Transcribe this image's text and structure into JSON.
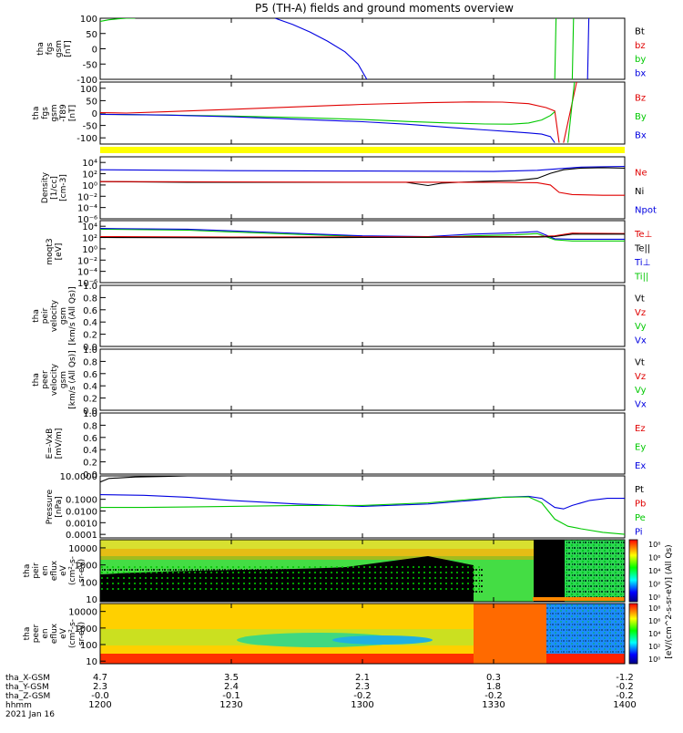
{
  "title": "P5 (TH-A) fields and ground moments overview",
  "colors": {
    "black": "#000000",
    "red": "#e00000",
    "green": "#00c800",
    "blue": "#0000e0",
    "yellow": "#ffff00"
  },
  "time_axis": {
    "tick_labels": [
      "1200",
      "1230",
      "1300",
      "1330",
      "1400"
    ],
    "tick_minutes": [
      0,
      30,
      60,
      90,
      120
    ],
    "range_minutes": [
      0,
      120
    ],
    "ephemeris": [
      {
        "name": "tha_X-GSM",
        "values": [
          "4.7",
          "3.5",
          "2.1",
          "0.3",
          "-1.2"
        ]
      },
      {
        "name": "tha_Y-GSM",
        "values": [
          "2.3",
          "2.4",
          "2.3",
          "1.8",
          "-0.2"
        ]
      },
      {
        "name": "tha_Z-GSM",
        "values": [
          "-0.0",
          "-0.1",
          "-0.2",
          "-0.2",
          "-0.2"
        ]
      },
      {
        "name": "hhmm",
        "values": [
          "1200",
          "1230",
          "1300",
          "1330",
          "1400"
        ]
      }
    ],
    "date": "2021 Jan 16"
  },
  "chart_data": [
    {
      "type": "line",
      "id": "fgs",
      "ylabel_lines": [
        "tha",
        "fgs",
        "gsm",
        "[nT]"
      ],
      "ylim": [
        -100,
        100
      ],
      "y_ticks": [
        "100",
        "50",
        "0",
        "-50",
        "-100"
      ],
      "legend": [
        {
          "name": "Bt",
          "color": "#000000"
        },
        {
          "name": "bz",
          "color": "#e00000"
        },
        {
          "name": "by",
          "color": "#00c800"
        },
        {
          "name": "bx",
          "color": "#0000e0"
        }
      ],
      "series": [
        {
          "name": "by",
          "color": "#00c800",
          "x": [
            0,
            2,
            4,
            6,
            8
          ],
          "y": [
            90,
            95,
            98,
            100,
            100
          ]
        },
        {
          "name": "bx",
          "color": "#0000e0",
          "x": [
            40,
            44,
            48,
            52,
            56,
            59,
            61
          ],
          "y": [
            100,
            80,
            55,
            25,
            -10,
            -50,
            -100
          ]
        },
        {
          "name": "by",
          "color": "#00c800",
          "x": [
            104,
            104.3
          ],
          "y": [
            -100,
            100
          ]
        },
        {
          "name": "by",
          "color": "#00c800",
          "x": [
            108,
            108.3
          ],
          "y": [
            -100,
            100
          ]
        },
        {
          "name": "bx",
          "color": "#0000e0",
          "x": [
            111.5,
            111.8
          ],
          "y": [
            -100,
            100
          ]
        }
      ]
    },
    {
      "type": "line",
      "id": "fgs_t89",
      "ylabel_lines": [
        "tha",
        "fgs",
        "gsm",
        "-T89",
        "[nT]"
      ],
      "ylim": [
        -125,
        125
      ],
      "y_ticks": [
        "100",
        "50",
        "0",
        "-50",
        "-100"
      ],
      "legend": [
        {
          "name": "Bz",
          "color": "#e00000"
        },
        {
          "name": "By",
          "color": "#00c800"
        },
        {
          "name": "Bx",
          "color": "#0000e0"
        }
      ],
      "series": [
        {
          "name": "Bz",
          "color": "#e00000",
          "x": [
            0,
            6,
            15,
            30,
            45,
            60,
            75,
            85,
            92,
            98,
            102,
            104,
            105
          ],
          "y": [
            2,
            0,
            5,
            15,
            25,
            35,
            42,
            45,
            44,
            38,
            22,
            8,
            -120
          ]
        },
        {
          "name": "Bz",
          "color": "#e00000",
          "x": [
            106,
            109
          ],
          "y": [
            -120,
            125
          ]
        },
        {
          "name": "By",
          "color": "#00c800",
          "x": [
            0,
            15,
            30,
            45,
            60,
            70,
            80,
            88,
            94,
            98,
            101,
            103,
            104
          ],
          "y": [
            -5,
            -8,
            -12,
            -18,
            -26,
            -34,
            -40,
            -44,
            -45,
            -40,
            -28,
            -10,
            5
          ]
        },
        {
          "name": "By",
          "color": "#00c800",
          "x": [
            107,
            108.5
          ],
          "y": [
            -120,
            125
          ]
        },
        {
          "name": "Bx",
          "color": "#0000e0",
          "x": [
            0,
            15,
            30,
            45,
            60,
            70,
            80,
            88,
            94,
            98,
            101,
            103,
            104
          ],
          "y": [
            -5,
            -8,
            -15,
            -25,
            -35,
            -45,
            -58,
            -68,
            -75,
            -80,
            -85,
            -95,
            -120
          ]
        }
      ]
    },
    {
      "type": "line",
      "id": "density",
      "ylabel_lines": [
        "Density",
        "[1/cc]",
        "[cm-3]"
      ],
      "log_scale": true,
      "ylim": [
        1e-06,
        100000
      ],
      "y_ticks": [
        "10⁴",
        "10²",
        "10⁰",
        "10⁻²",
        "10⁻⁴",
        "10⁻⁶"
      ],
      "legend": [
        {
          "name": "Ne",
          "color": "#e00000"
        },
        {
          "name": "Ni",
          "color": "#000000"
        },
        {
          "name": "Npot",
          "color": "#0000e0"
        }
      ],
      "series": [
        {
          "name": "Npot",
          "color": "#0000e0",
          "x": [
            0,
            30,
            60,
            90,
            100,
            110,
            120
          ],
          "y": [
            500,
            350,
            300,
            250,
            400,
            1500,
            2000
          ]
        },
        {
          "name": "Ni",
          "color": "#000000",
          "x": [
            0,
            20,
            40,
            60,
            70,
            75,
            78,
            82,
            86,
            90,
            95,
            100,
            103,
            106,
            110,
            115,
            120
          ],
          "y": [
            4,
            3,
            3,
            3,
            3,
            0.8,
            2,
            3,
            4,
            5,
            6,
            15,
            120,
            500,
            1000,
            1200,
            1000
          ]
        },
        {
          "name": "Ne",
          "color": "#e00000",
          "x": [
            0,
            30,
            60,
            90,
            100,
            103,
            105,
            108,
            115,
            120
          ],
          "y": [
            4,
            3.5,
            3.2,
            3,
            2.5,
            1,
            0.05,
            0.02,
            0.015,
            0.015
          ]
        }
      ]
    },
    {
      "type": "line",
      "id": "temperature",
      "ylabel_lines": [
        "moqt3",
        "[eV]"
      ],
      "log_scale": true,
      "ylim": [
        1e-06,
        100000
      ],
      "y_ticks": [
        "10⁴",
        "10²",
        "10⁰",
        "10⁻²",
        "10⁻⁴",
        "10⁻⁶"
      ],
      "legend": [
        {
          "name": "Te⊥",
          "color": "#e00000"
        },
        {
          "name": "Te||",
          "color": "#000000"
        },
        {
          "name": "Ti⊥",
          "color": "#0000e0"
        },
        {
          "name": "Ti||",
          "color": "#00c800"
        }
      ],
      "series": [
        {
          "name": "Ti||",
          "color": "#00c800",
          "x": [
            0,
            20,
            40,
            60,
            75,
            85,
            95,
            100,
            104,
            108,
            120
          ],
          "y": [
            3000,
            2000,
            500,
            150,
            100,
            200,
            300,
            500,
            40,
            25,
            25
          ]
        },
        {
          "name": "Ti⊥",
          "color": "#0000e0",
          "x": [
            0,
            20,
            40,
            60,
            75,
            85,
            95,
            100,
            104,
            108,
            120
          ],
          "y": [
            4000,
            3000,
            800,
            200,
            150,
            400,
            700,
            1200,
            60,
            50,
            50
          ]
        },
        {
          "name": "Te⊥",
          "color": "#e00000",
          "x": [
            0,
            30,
            60,
            90,
            100,
            104,
            108,
            120
          ],
          "y": [
            150,
            120,
            130,
            150,
            150,
            200,
            600,
            500
          ]
        },
        {
          "name": "Te||",
          "color": "#000000",
          "x": [
            0,
            30,
            60,
            90,
            100,
            104,
            108,
            120
          ],
          "y": [
            100,
            90,
            100,
            120,
            120,
            150,
            400,
            400
          ]
        }
      ]
    },
    {
      "type": "line",
      "id": "ion_velocity",
      "ylabel_lines": [
        "tha",
        "peir",
        "velocity",
        "gsm",
        "[km/s (All Qs)]"
      ],
      "ylim": [
        0,
        1
      ],
      "y_ticks": [
        "1.0",
        "0.8",
        "0.6",
        "0.4",
        "0.2",
        "0.0"
      ],
      "legend": [
        {
          "name": "Vt",
          "color": "#000000"
        },
        {
          "name": "Vz",
          "color": "#e00000"
        },
        {
          "name": "Vy",
          "color": "#00c800"
        },
        {
          "name": "Vx",
          "color": "#0000e0"
        }
      ],
      "series": []
    },
    {
      "type": "line",
      "id": "electron_velocity",
      "ylabel_lines": [
        "tha",
        "peer",
        "velocity",
        "gsm",
        "[km/s (All Qs)]"
      ],
      "ylim": [
        0,
        1
      ],
      "y_ticks": [
        "1.0",
        "0.8",
        "0.6",
        "0.4",
        "0.2",
        "0.0"
      ],
      "legend": [
        {
          "name": "Vt",
          "color": "#000000"
        },
        {
          "name": "Vz",
          "color": "#e00000"
        },
        {
          "name": "Vy",
          "color": "#00c800"
        },
        {
          "name": "Vx",
          "color": "#0000e0"
        }
      ],
      "series": []
    },
    {
      "type": "line",
      "id": "efield",
      "ylabel_lines": [
        "E=-VxB",
        "[mV/m]"
      ],
      "ylim": [
        0,
        1
      ],
      "y_ticks": [
        "1.0",
        "0.8",
        "0.6",
        "0.4",
        "0.2",
        "0.0"
      ],
      "legend": [
        {
          "name": "Ez",
          "color": "#e00000"
        },
        {
          "name": "Ey",
          "color": "#00c800"
        },
        {
          "name": "Ex",
          "color": "#0000e0"
        }
      ],
      "series": []
    },
    {
      "type": "line",
      "id": "pressure",
      "ylabel_lines": [
        "Pressure",
        "[nPa]"
      ],
      "log_scale": true,
      "ylim": [
        5e-05,
        10
      ],
      "y_ticks": [
        "10.0000",
        "0.1000",
        "0.0100",
        "0.0010",
        "0.0001"
      ],
      "legend": [
        {
          "name": "Pt",
          "color": "#000000"
        },
        {
          "name": "Pb",
          "color": "#e00000"
        },
        {
          "name": "Pe",
          "color": "#00c800"
        },
        {
          "name": "Pi",
          "color": "#0000e0"
        }
      ],
      "series": [
        {
          "name": "Pt",
          "color": "#000000",
          "x": [
            0,
            2,
            8,
            15,
            20
          ],
          "y": [
            3,
            6,
            8,
            9,
            10
          ]
        },
        {
          "name": "Pi",
          "color": "#0000e0",
          "x": [
            0,
            10,
            20,
            30,
            45,
            60,
            75,
            85,
            92,
            98,
            101,
            104,
            106,
            108,
            112,
            116,
            120
          ],
          "y": [
            0.25,
            0.22,
            0.15,
            0.08,
            0.04,
            0.025,
            0.04,
            0.08,
            0.15,
            0.18,
            0.12,
            0.02,
            0.015,
            0.03,
            0.08,
            0.12,
            0.12
          ]
        },
        {
          "name": "Pe",
          "color": "#00c800",
          "x": [
            0,
            10,
            20,
            30,
            45,
            60,
            75,
            85,
            92,
            98,
            101,
            104,
            107,
            110,
            115,
            120
          ],
          "y": [
            0.02,
            0.02,
            0.022,
            0.025,
            0.03,
            0.03,
            0.05,
            0.1,
            0.15,
            0.16,
            0.05,
            0.002,
            0.0005,
            0.0003,
            0.00015,
            0.0001
          ]
        }
      ]
    },
    {
      "type": "heatmap",
      "id": "ion_spectrogram",
      "ylabel_lines": [
        "tha",
        "peir",
        "en",
        "eflux",
        "eV",
        "(cm²-s-",
        "sr-eV)"
      ],
      "log_scale": true,
      "ylim": [
        7,
        30000
      ],
      "y_ticks": [
        "10000",
        "1000",
        "100",
        "10"
      ],
      "colorbar_ticks": [
        "10⁸",
        "10⁶",
        "10⁴",
        "10²",
        "10⁰"
      ]
    },
    {
      "type": "heatmap",
      "id": "electron_spectrogram",
      "ylabel_lines": [
        "tha",
        "peer",
        "en",
        "eflux",
        "eV",
        "(cm²-s-",
        "sr-eV)"
      ],
      "log_scale": true,
      "ylim": [
        7,
        30000
      ],
      "y_ticks": [
        "10000",
        "1000",
        "100",
        "10"
      ],
      "colorbar_ticks": [
        "10⁸",
        "10⁶",
        "10⁴",
        "10²",
        "10⁰"
      ]
    }
  ],
  "colorbar_label": "[eV/(cm^2-s-sr-eV)] (All Qs)"
}
